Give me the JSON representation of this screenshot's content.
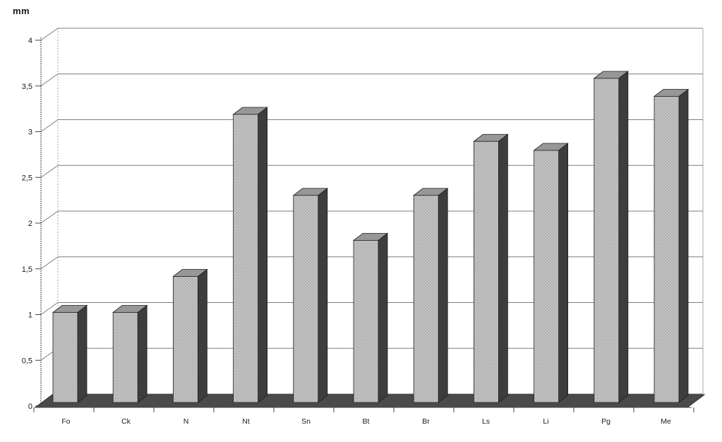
{
  "chart_data": {
    "type": "bar",
    "style": "3d-column",
    "title": "",
    "xlabel": "",
    "ylabel": "mm",
    "categories": [
      "Fo",
      "Ck",
      "N",
      "Nt",
      "Sn",
      "Bt",
      "Br",
      "Ls",
      "Li",
      "Pg",
      "Me"
    ],
    "values": [
      1.0,
      1.0,
      1.4,
      3.2,
      2.3,
      1.8,
      2.3,
      2.9,
      2.8,
      3.6,
      3.4
    ],
    "ylim": [
      0,
      4
    ],
    "ytick_step": 0.5,
    "ytick_labels": [
      "0",
      "0,5",
      "1",
      "1,5",
      "2",
      "2,5",
      "3",
      "3,5",
      "4"
    ],
    "grid": true,
    "legend_position": "none",
    "colors": {
      "bar_front": "#b5b5b5",
      "bar_front_speckle": "#dedede",
      "bar_side": "#3d3d3d",
      "bar_top": "#979797",
      "bar_outline": "#1f1f1f",
      "floor": "#4a4a4a",
      "floor_edge": "#2e2e2e",
      "gridline": "#7d7d7d",
      "wall_edge": "#aaaaaa",
      "axis": "#444444",
      "tick_label": "#1a1a1a",
      "background": "#ffffff"
    }
  }
}
